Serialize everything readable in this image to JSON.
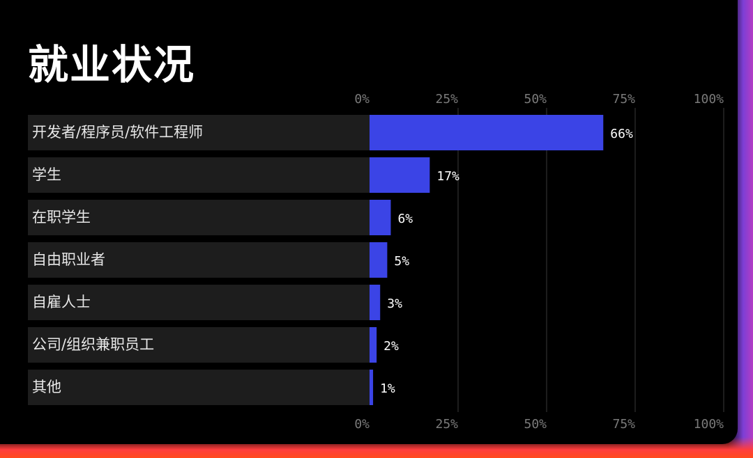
{
  "title": "就业状况",
  "colors": {
    "bar": "#3b44e6",
    "row_background": "#1d1d1d",
    "gridline": "#3a3a3a",
    "page_background": "#000000"
  },
  "chart_data": {
    "type": "bar",
    "orientation": "horizontal",
    "title": "就业状况",
    "categories": [
      "开发者/程序员/软件工程师",
      "学生",
      "在职学生",
      "自由职业者",
      "自雇人士",
      "公司/组织兼职员工",
      "其他"
    ],
    "values": [
      66,
      17,
      6,
      5,
      3,
      2,
      1
    ],
    "value_labels": [
      "66%",
      "17%",
      "6%",
      "5%",
      "3%",
      "2%",
      "1%"
    ],
    "xlim": [
      0,
      100
    ],
    "ticks": [
      "0%",
      "25%",
      "50%",
      "75%",
      "100%"
    ],
    "tick_values": [
      0,
      25,
      50,
      75,
      100
    ],
    "grid": true
  }
}
